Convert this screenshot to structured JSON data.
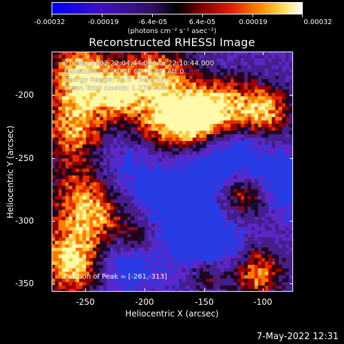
{
  "colorbar": {
    "labels": [
      "-0.00032",
      "-0.00019",
      "-6.4e-05",
      "6.4e-05",
      "0.00019",
      "0.00032"
    ],
    "units": "(photons cm⁻² s⁻¹ asec⁻²)"
  },
  "title": "Reconstructed RHESSI Image",
  "info": {
    "line1": "21-Sep-2002 22:04:44.000 to 22:10:44.000",
    "line2": "Detectors: 3F 4F 5F 6F 7F 8F, Att 0",
    "line3": "Energy Range: 25.0 - 50.0 keV",
    "line4": "Clean     Total counts: 1.27E+04"
  },
  "peak": "Position of Peak = [-261,-313]",
  "axes": {
    "xlabel": "Heliocentric X (arcsec)",
    "ylabel": "Heliocentric Y (arcsec)",
    "xticks": [
      "-250",
      "-200",
      "-150",
      "-100"
    ],
    "yticks": [
      "-200",
      "-250",
      "-300",
      "-350"
    ]
  },
  "timestamp": "7-May-2022 12:31",
  "colors": {
    "negative_max": "#0000ff",
    "mid": "#000000",
    "positive_max": "#ffffff",
    "hot": [
      "#800000",
      "#ff3000",
      "#ffa000",
      "#ffff80"
    ]
  },
  "chart_data": {
    "type": "heatmap",
    "title": "Reconstructed RHESSI Image",
    "xlabel": "Heliocentric X (arcsec)",
    "ylabel": "Heliocentric Y (arcsec)",
    "xlim": [
      -278,
      -85
    ],
    "ylim": [
      -358,
      -168
    ],
    "color_range": [
      -0.00032,
      0.00032
    ],
    "peak_position": [
      -261,
      -313
    ]
  }
}
